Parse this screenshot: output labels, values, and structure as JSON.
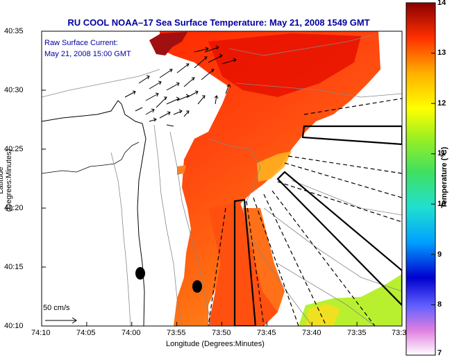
{
  "title": "RU COOL  NOAA–17  Sea Surface Temperature:  May 21, 2008 1549 GMT",
  "current_note": {
    "line1": "Raw Surface Current:",
    "line2": "May 21, 2008 15:00 GMT"
  },
  "scale_label": "50 cm/s",
  "x_axis": {
    "label": "Longitude (Degrees:Minutes)",
    "ticks": [
      "74:10",
      "74:05",
      "74:00",
      "73:55",
      "73:50",
      "73:45",
      "73:40",
      "73:35",
      "73:3"
    ]
  },
  "y_axis": {
    "label": "Latitude (Degrees:Minutes)",
    "ticks": [
      "40:35",
      "40:30",
      "40:25",
      "40:20",
      "40:15",
      "40:10"
    ]
  },
  "colorbar": {
    "label": "Temperature (°C)",
    "ticks": [
      "14",
      "13",
      "12",
      "11",
      "10",
      "9",
      "8",
      "7"
    ],
    "min": 7,
    "max": 14
  },
  "colors": {
    "title": "#0000a0",
    "land": "#ffffff",
    "frame": "#000000"
  }
}
